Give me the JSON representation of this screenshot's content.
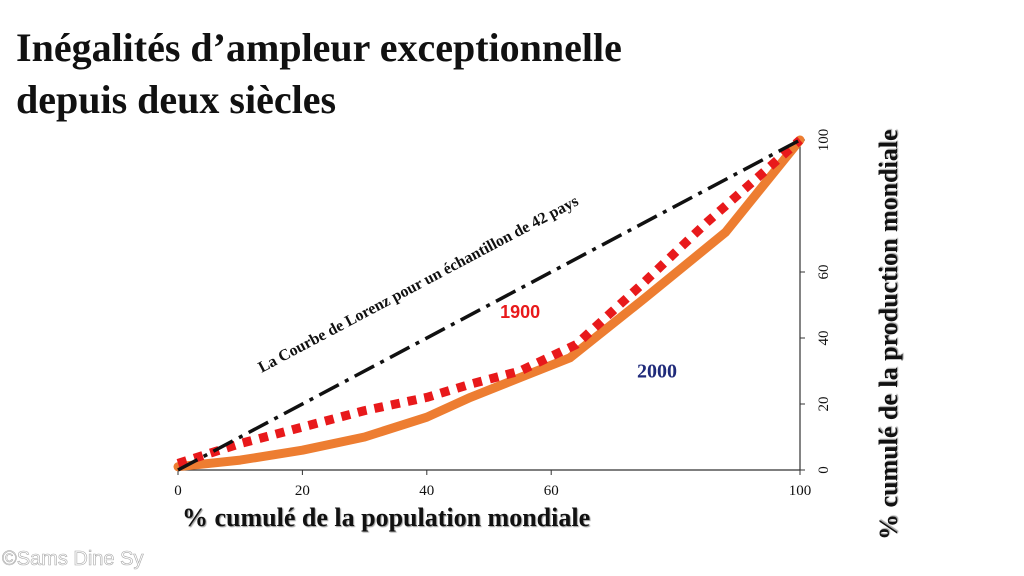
{
  "title_lines": [
    "Inégalités d’ampleur exceptionnelle",
    "depuis deux siècles"
  ],
  "watermark": "©Sams Dine Sy",
  "chart_data": {
    "type": "line",
    "xlabel": "% cumulé de la population mondiale",
    "ylabel": "% cumulé  de la production  mondiale",
    "xlim": [
      0,
      100
    ],
    "ylim": [
      0,
      100
    ],
    "x_ticks": [
      0,
      20,
      40,
      60,
      100
    ],
    "y_ticks": [
      0,
      20,
      40,
      60,
      100
    ],
    "grid": false,
    "series": [
      {
        "name": "1900",
        "style": "dotted",
        "color": "#e8191b",
        "points": [
          [
            0,
            2
          ],
          [
            10,
            8
          ],
          [
            20,
            13
          ],
          [
            30,
            18
          ],
          [
            40,
            22
          ],
          [
            47,
            26
          ],
          [
            55,
            30
          ],
          [
            64,
            38
          ],
          [
            75,
            57
          ],
          [
            85,
            75
          ],
          [
            100,
            100
          ]
        ]
      },
      {
        "name": "2000",
        "style": "solid",
        "color": "#ed7d31",
        "points": [
          [
            0,
            1
          ],
          [
            10,
            3
          ],
          [
            20,
            6
          ],
          [
            30,
            10
          ],
          [
            40,
            16
          ],
          [
            47,
            22
          ],
          [
            55,
            28
          ],
          [
            63,
            34
          ],
          [
            75,
            52
          ],
          [
            88,
            72
          ],
          [
            100,
            100
          ]
        ]
      }
    ],
    "diagonal": {
      "label": "La Courbe de Lorenz pour un échantillon de 42 pays",
      "points": [
        [
          0,
          0
        ],
        [
          100,
          100
        ]
      ],
      "color": "#111111",
      "style": "dash-dot"
    },
    "series_label_colors": {
      "1900": "#e8191b",
      "2000": "#1f2a7a"
    }
  }
}
